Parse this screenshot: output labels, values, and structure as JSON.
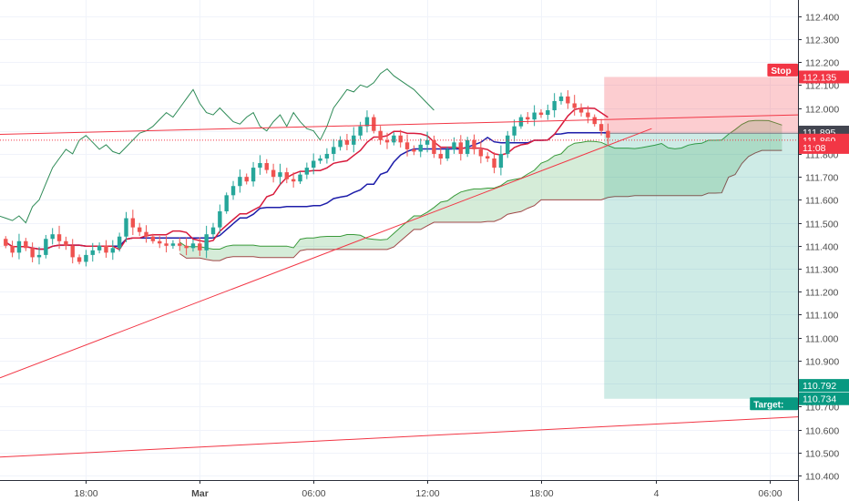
{
  "chart_data": {
    "type": "candlestick",
    "y_axis": {
      "range": [
        110.38,
        112.47
      ],
      "ticks": [
        "112.400",
        "112.300",
        "112.200",
        "112.100",
        "112.000",
        "111.900",
        "111.800",
        "111.700",
        "111.600",
        "111.500",
        "111.400",
        "111.300",
        "111.200",
        "111.100",
        "111.000",
        "110.900",
        "110.800",
        "110.700",
        "110.600",
        "110.500",
        "110.400"
      ]
    },
    "x_axis": {
      "range_hours": [
        -10.5,
        31.5
      ],
      "ticks": [
        {
          "label": "18:00",
          "hour": -6
        },
        {
          "label": "Mar",
          "hour": 0
        },
        {
          "label": "06:00",
          "hour": 6
        },
        {
          "label": "12:00",
          "hour": 12
        },
        {
          "label": "18:00",
          "hour": 18
        },
        {
          "label": "4",
          "hour": 24
        },
        {
          "label": "06:00",
          "hour": 30
        }
      ]
    },
    "grid": true,
    "candles_close": [
      111.4,
      111.37,
      111.42,
      111.39,
      111.35,
      111.36,
      111.43,
      111.45,
      111.42,
      111.4,
      111.35,
      111.33,
      111.36,
      111.38,
      111.4,
      111.37,
      111.39,
      111.44,
      111.52,
      111.48,
      111.46,
      111.44,
      111.42,
      111.41,
      111.4,
      111.41,
      111.4,
      111.39,
      111.41,
      111.38,
      111.45,
      111.48,
      111.55,
      111.62,
      111.66,
      111.7,
      111.68,
      111.74,
      111.76,
      111.73,
      111.7,
      111.72,
      111.69,
      111.68,
      111.71,
      111.74,
      111.77,
      111.78,
      111.8,
      111.83,
      111.86,
      111.84,
      111.88,
      111.92,
      111.96,
      111.9,
      111.86,
      111.85,
      111.88,
      111.85,
      111.82,
      111.81,
      111.84,
      111.86,
      111.8,
      111.78,
      111.82,
      111.85,
      111.8,
      111.86,
      111.82,
      111.79,
      111.78,
      111.74,
      111.8,
      111.88,
      111.92,
      111.96,
      111.95,
      111.98,
      111.97,
      111.99,
      112.03,
      112.05,
      112.02,
      112.0,
      111.98,
      111.96,
      111.93,
      111.9,
      111.87
    ],
    "price_labels": [
      {
        "text": "112.135",
        "value": 112.135,
        "color": "#f23645"
      },
      {
        "text": "111.895",
        "value": 111.895,
        "color": "#434651"
      },
      {
        "text": "111.860",
        "value": 111.86,
        "color": "#f23645"
      },
      {
        "text": "11:08",
        "value": 111.828,
        "color": "#f23645"
      },
      {
        "text": "110.792",
        "value": 110.792,
        "color": "#089981"
      },
      {
        "text": "110.734",
        "value": 110.734,
        "color": "#089981"
      }
    ],
    "annotations": [
      {
        "text": "Stop",
        "value": 112.165,
        "color": "#f23645"
      },
      {
        "text": "Target:",
        "value": 110.712,
        "color": "#089981"
      }
    ],
    "position": {
      "entry": 111.89,
      "stop": 112.135,
      "target": 110.734,
      "start_hour": 21.3
    },
    "colors": {
      "up": "#26a69a",
      "down": "#ef5350",
      "tenkan": "#d81b3c",
      "kijun": "#1e1eaa",
      "chikou": "#2e8b57",
      "trend": "#f23645"
    }
  }
}
